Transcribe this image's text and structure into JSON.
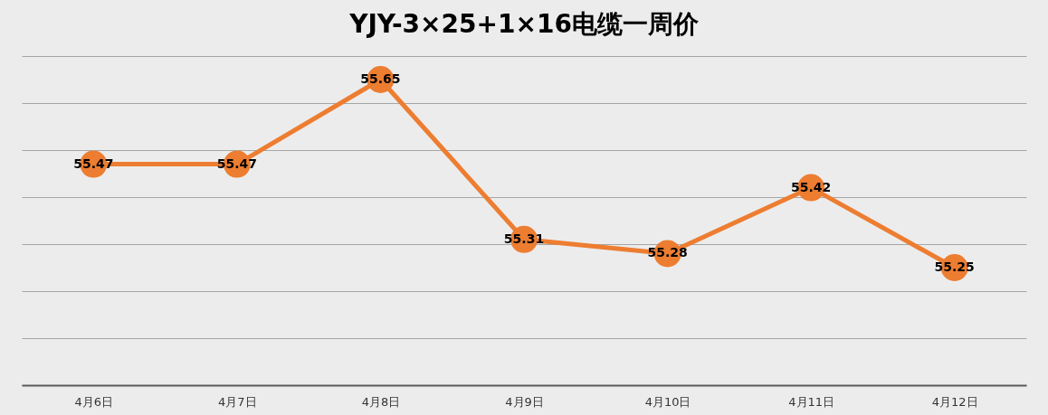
{
  "chart_data": {
    "type": "line",
    "title": "YJY-3×25+1×16电缆一周价",
    "categories": [
      "4月6日",
      "4月7日",
      "4月8日",
      "4月9日",
      "4月10日",
      "4月11日",
      "4月12日"
    ],
    "series": [
      {
        "color": "#ed7d31",
        "values": [
          55.47,
          55.47,
          55.65,
          55.31,
          55.28,
          55.42,
          55.25
        ]
      }
    ],
    "ylim": [
      55.0,
      55.7
    ],
    "yticks": [
      {
        "value": 55.0,
        "label": null
      },
      {
        "value": 55.1,
        "label": null
      },
      {
        "value": 55.2,
        "label": null
      },
      {
        "value": 55.3,
        "label": null
      },
      {
        "value": 55.4,
        "label": null
      },
      {
        "value": 55.5,
        "label": null
      },
      {
        "value": 55.6,
        "label": null
      },
      {
        "value": 55.7,
        "label": null
      }
    ],
    "tick_labels": "x",
    "grid": "y",
    "data_labels": true,
    "marker": "circle",
    "line_style": "solid"
  }
}
